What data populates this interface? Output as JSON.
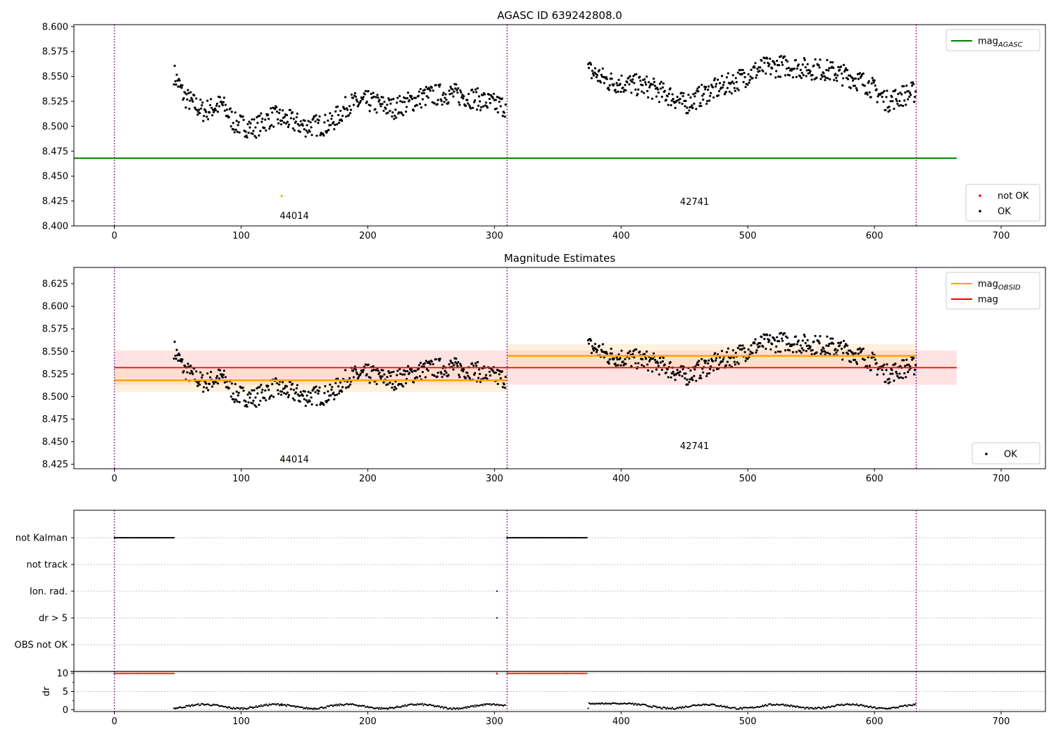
{
  "chart_data": [
    {
      "type": "scatter",
      "title": "AGASC ID 639242808.0",
      "xlim": [
        -32,
        735
      ],
      "ylim": [
        8.4,
        8.602
      ],
      "x_ticks": [
        0,
        100,
        200,
        300,
        400,
        500,
        600,
        700
      ],
      "y_ticks": [
        8.4,
        8.425,
        8.45,
        8.475,
        8.5,
        8.525,
        8.55,
        8.575,
        8.6
      ],
      "y_tick_format": 3,
      "obs_boundaries": [
        0,
        310,
        633
      ],
      "obs_labels": [
        {
          "text": "44014",
          "x": 142,
          "y": 8.41
        },
        {
          "text": "42741",
          "x": 458,
          "y": 8.424
        }
      ],
      "hlines": [
        {
          "y": 8.468,
          "x": [
            -32,
            665
          ],
          "color": "#008000",
          "width": 2
        }
      ],
      "outliers": [
        {
          "x": 132,
          "y": 8.43,
          "color": "#ffa500"
        }
      ],
      "legends": [
        {
          "position": "top-right",
          "entries": [
            {
              "kind": "line",
              "color": "#008000",
              "label": "mag",
              "sub": "AGASC"
            }
          ]
        },
        {
          "position": "bottom-right",
          "entries": [
            {
              "kind": "dot",
              "color": "#ff0000",
              "label": "not OK"
            },
            {
              "kind": "dot",
              "color": "#000000",
              "label": "OK"
            }
          ]
        }
      ]
    },
    {
      "type": "scatter",
      "title": "Magnitude Estimates",
      "xlim": [
        -32,
        735
      ],
      "ylim": [
        8.42,
        8.643
      ],
      "x_ticks": [
        0,
        100,
        200,
        300,
        400,
        500,
        600,
        700
      ],
      "y_ticks": [
        8.425,
        8.45,
        8.475,
        8.5,
        8.525,
        8.55,
        8.575,
        8.6,
        8.625
      ],
      "y_tick_format": 3,
      "obs_boundaries": [
        0,
        310,
        633
      ],
      "obs_labels": [
        {
          "text": "44014",
          "x": 142,
          "y": 8.43
        },
        {
          "text": "42741",
          "x": 458,
          "y": 8.445
        }
      ],
      "bands": [
        {
          "x": [
            0,
            665
          ],
          "y": [
            8.513,
            8.551
          ],
          "color": "#ffcccc",
          "opacity": 0.55
        },
        {
          "x": [
            0,
            310
          ],
          "y": [
            8.505,
            8.53
          ],
          "color": "#ffd8a0",
          "opacity": 0.35
        },
        {
          "x": [
            310,
            633
          ],
          "y": [
            8.532,
            8.558
          ],
          "color": "#ffd8a0",
          "opacity": 0.35
        }
      ],
      "hlines": [
        {
          "y": 8.532,
          "x": [
            0,
            665
          ],
          "color": "#ff0000",
          "width": 1.8
        },
        {
          "y": 8.518,
          "x": [
            0,
            310
          ],
          "color": "#ffa500",
          "width": 2.5
        },
        {
          "y": 8.545,
          "x": [
            310,
            633
          ],
          "color": "#ffa500",
          "width": 2.5
        }
      ],
      "outliers": [
        {
          "x": 132,
          "y": 8.43,
          "color": "#ffa500"
        }
      ],
      "legends": [
        {
          "position": "top-right",
          "entries": [
            {
              "kind": "line",
              "color": "#ffa500",
              "label": "mag",
              "sub": "OBSID"
            },
            {
              "kind": "line",
              "color": "#ff0000",
              "label": "mag",
              "sub": ""
            }
          ]
        },
        {
          "position": "bottom-right",
          "entries": [
            {
              "kind": "dot",
              "color": "#000000",
              "label": "OK"
            }
          ]
        }
      ]
    },
    {
      "type": "scatter",
      "title": "",
      "xlim": [
        -32,
        735
      ],
      "categories": [
        "not Kalman",
        "not track",
        "Ion. rad.",
        "dr > 5",
        "OBS not OK"
      ],
      "flags": [
        {
          "row": "not Kalman",
          "ranges": [
            [
              0,
              47
            ],
            [
              310,
              373
            ]
          ]
        },
        {
          "row": "Ion. rad.",
          "points": [
            302
          ]
        },
        {
          "row": "dr > 5",
          "points": [
            302
          ]
        }
      ],
      "obs_boundaries": [
        0,
        310,
        633
      ]
    },
    {
      "type": "scatter",
      "title": "",
      "ylabel": "dr",
      "xlim": [
        -32,
        735
      ],
      "ylim": [
        -0.5,
        10.5
      ],
      "x_ticks": [
        0,
        100,
        200,
        300,
        400,
        500,
        600,
        700
      ],
      "y_ticks": [
        0,
        5,
        10
      ],
      "y_tick_format": 0,
      "clipped_value": 10,
      "clipped_ranges": [
        [
          0,
          47
        ],
        [
          310,
          373
        ]
      ],
      "clipped_points": [
        302
      ],
      "obs_boundaries": [
        0,
        310,
        633
      ]
    }
  ]
}
